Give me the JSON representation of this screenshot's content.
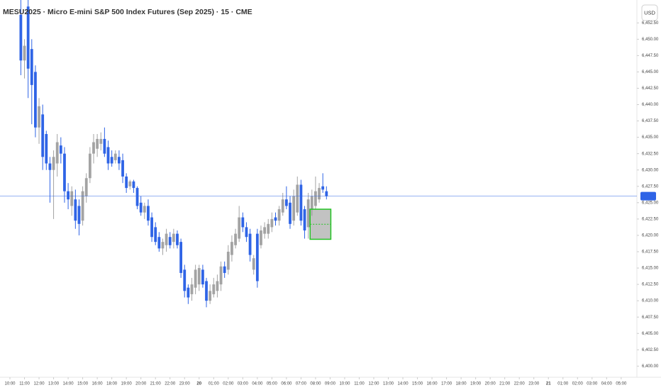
{
  "chart_data": {
    "type": "candlestick",
    "title": "MESU2025 · Micro E-mini S&P 500 Index Futures (Sep 2025) · 15 · CME",
    "currency_button": "USD",
    "up_color": "#a3a3a3",
    "down_color": "#2f64e6",
    "x": [
      3,
      4,
      5,
      6,
      7,
      8,
      9,
      10,
      11,
      12,
      13,
      14,
      15,
      16,
      17,
      18,
      19,
      20,
      21,
      22,
      23,
      24,
      25,
      26,
      27,
      28,
      29,
      30,
      31,
      32,
      33,
      34,
      35,
      36,
      37,
      38,
      39,
      40,
      41,
      42,
      43,
      44,
      45,
      46,
      47,
      48,
      49,
      50,
      51,
      52,
      53,
      54,
      55,
      56,
      57,
      58,
      59,
      60,
      61,
      62,
      63,
      64,
      65,
      66,
      67,
      68,
      69,
      70,
      71,
      72,
      73,
      74,
      75,
      76,
      77,
      78,
      79,
      80,
      81,
      82,
      83,
      84,
      85,
      86,
      87
    ],
    "ohlc": [
      [
        6453.75,
        6456,
        6444.5,
        6446.75
      ],
      [
        6446.75,
        6450,
        6444,
        6449
      ],
      [
        6455,
        6456,
        6441,
        6445.5
      ],
      [
        6448.5,
        6450,
        6437,
        6443
      ],
      [
        6445,
        6446,
        6435,
        6436.5
      ],
      [
        6436.5,
        6441,
        6434,
        6439.75
      ],
      [
        6438.5,
        6440,
        6430,
        6432
      ],
      [
        6435.5,
        6436,
        6430,
        6431
      ],
      [
        6431,
        6432,
        6425,
        6430
      ],
      [
        6430,
        6433,
        6422.5,
        6432
      ],
      [
        6431,
        6435.5,
        6429,
        6434.25
      ],
      [
        6433.75,
        6435,
        6431,
        6432.5
      ],
      [
        6432.5,
        6433.5,
        6425,
        6426.75
      ],
      [
        6426.75,
        6428,
        6424,
        6425.5
      ],
      [
        6424.5,
        6427.5,
        6423,
        6426.75
      ],
      [
        6425.5,
        6427,
        6421,
        6422.25
      ],
      [
        6424.5,
        6425.5,
        6420,
        6421.75
      ],
      [
        6422.25,
        6427.5,
        6421.5,
        6426.75
      ],
      [
        6426,
        6429.5,
        6425,
        6428.75
      ],
      [
        6428.75,
        6433.5,
        6428,
        6432.5
      ],
      [
        6432.5,
        6435.5,
        6431,
        6434.25
      ],
      [
        6433.25,
        6435.5,
        6432,
        6434.75
      ],
      [
        6434,
        6435.75,
        6433,
        6434.75
      ],
      [
        6434.75,
        6436.5,
        6432,
        6432.5
      ],
      [
        6433.5,
        6434.5,
        6430,
        6431
      ],
      [
        6432,
        6433,
        6430.5,
        6431
      ],
      [
        6431.5,
        6433,
        6431,
        6432.5
      ],
      [
        6432,
        6433,
        6430,
        6431
      ],
      [
        6431.5,
        6432.5,
        6428,
        6429
      ],
      [
        6429,
        6429.5,
        6426.5,
        6427.25
      ],
      [
        6427.5,
        6428.5,
        6427,
        6428.25
      ],
      [
        6428.25,
        6428.5,
        6426.5,
        6427.25
      ],
      [
        6427.25,
        6427.5,
        6424,
        6424.5
      ],
      [
        6425,
        6426,
        6423,
        6423.5
      ],
      [
        6423.5,
        6425,
        6422.5,
        6424.5
      ],
      [
        6424.5,
        6425.5,
        6421.5,
        6422.25
      ],
      [
        6422.75,
        6423.5,
        6419,
        6419.75
      ],
      [
        6421.25,
        6422,
        6418.5,
        6419
      ],
      [
        6419.75,
        6420.5,
        6417.5,
        6418
      ],
      [
        6418,
        6419.5,
        6417,
        6419
      ],
      [
        6418.5,
        6421,
        6417.5,
        6420.25
      ],
      [
        6419.75,
        6420.5,
        6418,
        6418.5
      ],
      [
        6419,
        6421,
        6418,
        6420.25
      ],
      [
        6420.25,
        6420.75,
        6418,
        6418.5
      ],
      [
        6419,
        6419.5,
        6413.5,
        6414.25
      ],
      [
        6414.75,
        6415.5,
        6410.5,
        6411.5
      ],
      [
        6412,
        6412.5,
        6409.5,
        6410.5
      ],
      [
        6411,
        6413.5,
        6410,
        6412.5
      ],
      [
        6412,
        6415.5,
        6411,
        6414.75
      ],
      [
        6412.5,
        6415.5,
        6411.5,
        6415
      ],
      [
        6414.75,
        6415.5,
        6412,
        6412.5
      ],
      [
        6413,
        6413.5,
        6409,
        6410
      ],
      [
        6410,
        6412.5,
        6409.5,
        6411.5
      ],
      [
        6411,
        6413.5,
        6410.5,
        6412.5
      ],
      [
        6411.5,
        6414,
        6410.5,
        6413
      ],
      [
        6412.5,
        6416,
        6411.5,
        6415.25
      ],
      [
        6415.25,
        6416,
        6413.5,
        6414.25
      ],
      [
        6414.75,
        6418.5,
        6414,
        6417.5
      ],
      [
        6417,
        6420,
        6416,
        6419
      ],
      [
        6418.5,
        6421,
        6418,
        6420.25
      ],
      [
        6419.5,
        6424.5,
        6419,
        6422.75
      ],
      [
        6422.75,
        6423.5,
        6420.5,
        6421.25
      ],
      [
        6421.25,
        6422,
        6419,
        6419.75
      ],
      [
        6420.25,
        6421,
        6416,
        6417
      ],
      [
        6414.75,
        6417,
        6414,
        6416.5
      ],
      [
        6420.25,
        6421,
        6412,
        6413
      ],
      [
        6418.5,
        6421.5,
        6418,
        6420.75
      ],
      [
        6420.25,
        6422,
        6419.5,
        6421.25
      ],
      [
        6420.25,
        6422.5,
        6419.5,
        6421.75
      ],
      [
        6421.25,
        6423.5,
        6420.5,
        6422.5
      ],
      [
        6422.75,
        6423.5,
        6421.5,
        6422.25
      ],
      [
        6422.25,
        6424.5,
        6421.5,
        6424
      ],
      [
        6423.5,
        6426.5,
        6423,
        6425.5
      ],
      [
        6425.5,
        6427.5,
        6424,
        6424.5
      ],
      [
        6425,
        6426,
        6421,
        6421.75
      ],
      [
        6422.25,
        6427,
        6421.5,
        6426
      ],
      [
        6423.5,
        6429,
        6423,
        6427.75
      ],
      [
        6427.75,
        6428.5,
        6421.5,
        6422.25
      ],
      [
        6424,
        6424.5,
        6419.5,
        6420.75
      ],
      [
        6421.25,
        6426.5,
        6419.5,
        6425.5
      ],
      [
        6424,
        6427,
        6423,
        6426
      ],
      [
        6424.5,
        6429,
        6424,
        6426.75
      ],
      [
        6425.5,
        6428,
        6425,
        6427.25
      ],
      [
        6427.5,
        6429.5,
        6426.5,
        6427
      ],
      [
        6426.75,
        6427.5,
        6425.5,
        6426
      ]
    ],
    "last_price": 6426.0,
    "last_price_color": "#2f64e6",
    "box": {
      "x": [
        82.5,
        88.2
      ],
      "y": [
        6419.4,
        6424.0
      ],
      "color": "#22c322"
    },
    "xlim": [
      0,
      172.5
    ],
    "ylim": [
      6398.3,
      6456.0
    ],
    "xticks": [
      {
        "value": 0,
        "label": "10:00"
      },
      {
        "value": 4,
        "label": "11:00"
      },
      {
        "value": 8,
        "label": "12:00"
      },
      {
        "value": 12,
        "label": "13:00"
      },
      {
        "value": 16,
        "label": "14:00"
      },
      {
        "value": 20,
        "label": "15:00"
      },
      {
        "value": 24,
        "label": "16:00"
      },
      {
        "value": 28,
        "label": "18:00"
      },
      {
        "value": 32,
        "label": "19:00"
      },
      {
        "value": 36,
        "label": "20:00"
      },
      {
        "value": 40,
        "label": "21:00"
      },
      {
        "value": 44,
        "label": "22:00"
      },
      {
        "value": 48,
        "label": "23:00"
      },
      {
        "value": 52,
        "label": "20"
      },
      {
        "value": 56,
        "label": "01:00"
      },
      {
        "value": 60,
        "label": "02:00"
      },
      {
        "value": 64,
        "label": "03:00"
      },
      {
        "value": 68,
        "label": "04:00"
      },
      {
        "value": 72,
        "label": "05:00"
      },
      {
        "value": 76,
        "label": "06:00"
      },
      {
        "value": 80,
        "label": "07:00"
      },
      {
        "value": 84,
        "label": "08:00"
      },
      {
        "value": 88,
        "label": "09:00"
      },
      {
        "value": 92,
        "label": "10:00"
      },
      {
        "value": 96,
        "label": "11:00"
      },
      {
        "value": 100,
        "label": "12:00"
      },
      {
        "value": 104,
        "label": "13:00"
      },
      {
        "value": 108,
        "label": "14:00"
      },
      {
        "value": 112,
        "label": "15:00"
      },
      {
        "value": 116,
        "label": "16:00"
      },
      {
        "value": 120,
        "label": "17:00"
      },
      {
        "value": 124,
        "label": "18:00"
      },
      {
        "value": 128,
        "label": "19:00"
      },
      {
        "value": 132,
        "label": "20:00"
      },
      {
        "value": 136,
        "label": "21:00"
      },
      {
        "value": 140,
        "label": "22:00"
      },
      {
        "value": 144,
        "label": "23:00"
      },
      {
        "value": 148,
        "label": "21"
      },
      {
        "value": 152,
        "label": "01:00"
      },
      {
        "value": 156,
        "label": "02:00"
      },
      {
        "value": 160,
        "label": "03:00"
      },
      {
        "value": 164,
        "label": "04:00"
      },
      {
        "value": 168,
        "label": "05:00"
      }
    ],
    "yticks": [
      {
        "value": 6400,
        "label": "6,400.00"
      },
      {
        "value": 6402.5,
        "label": "6,402.50"
      },
      {
        "value": 6405,
        "label": "6,405.00"
      },
      {
        "value": 6407.5,
        "label": "6,407.50"
      },
      {
        "value": 6410,
        "label": "6,410.00"
      },
      {
        "value": 6412.5,
        "label": "6,412.50"
      },
      {
        "value": 6415,
        "label": "6,415.00"
      },
      {
        "value": 6417.5,
        "label": "6,417.50"
      },
      {
        "value": 6420,
        "label": "6,420.00"
      },
      {
        "value": 6422.5,
        "label": "6,422.50"
      },
      {
        "value": 6425,
        "label": "6,425.00"
      },
      {
        "value": 6427.5,
        "label": "6,427.50"
      },
      {
        "value": 6430,
        "label": "6,430.00"
      },
      {
        "value": 6432.5,
        "label": "6,432.50"
      },
      {
        "value": 6435,
        "label": "6,435.00"
      },
      {
        "value": 6437.5,
        "label": "6,437.50"
      },
      {
        "value": 6440,
        "label": "6,440.00"
      },
      {
        "value": 6442.5,
        "label": "6,442.50"
      },
      {
        "value": 6445,
        "label": "6,445.00"
      },
      {
        "value": 6447.5,
        "label": "6,447.50"
      },
      {
        "value": 6450,
        "label": "6,450.00"
      },
      {
        "value": 6452.5,
        "label": "6,452.50"
      }
    ]
  }
}
